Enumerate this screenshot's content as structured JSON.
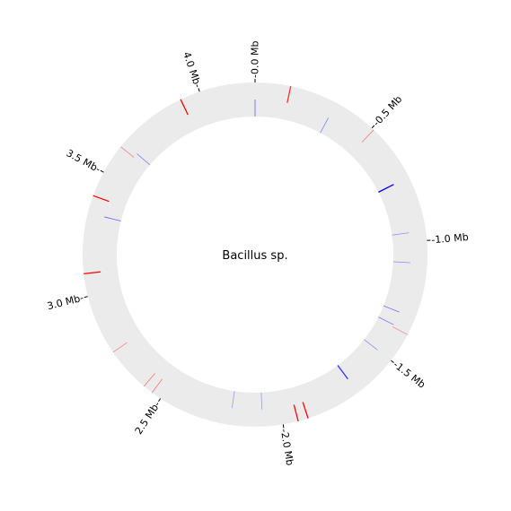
{
  "title": "Bacillus sp.",
  "genome_length_mb": 4.22,
  "colors": {
    "track": "#ebebeb",
    "forward_feature": "#ff0000",
    "reverse_feature": "#0000ff",
    "tick": "#000000"
  },
  "ticks": [
    {
      "pos": 0.0,
      "label": "0.0 Mb"
    },
    {
      "pos": 0.5,
      "label": "0.5 Mb"
    },
    {
      "pos": 1.0,
      "label": "1.0 Mb"
    },
    {
      "pos": 1.5,
      "label": "1.5 Mb"
    },
    {
      "pos": 2.0,
      "label": "2.0 Mb"
    },
    {
      "pos": 2.5,
      "label": "2.5 Mb"
    },
    {
      "pos": 3.0,
      "label": "3.0 Mb"
    },
    {
      "pos": 3.5,
      "label": "3.5 Mb"
    },
    {
      "pos": 4.0,
      "label": "4.0 Mb"
    }
  ],
  "features": [
    {
      "pos": 0.14,
      "strand": "+",
      "intensity": 0.8
    },
    {
      "pos": 0.0,
      "strand": "-",
      "intensity": 0.6
    },
    {
      "pos": 0.33,
      "strand": "-",
      "intensity": 0.45
    },
    {
      "pos": 0.51,
      "strand": "+",
      "intensity": 0.5
    },
    {
      "pos": 0.74,
      "strand": "-",
      "intensity": 1.0
    },
    {
      "pos": 0.96,
      "strand": "-",
      "intensity": 0.4
    },
    {
      "pos": 1.09,
      "strand": "-",
      "intensity": 0.4
    },
    {
      "pos": 1.31,
      "strand": "-",
      "intensity": 0.5
    },
    {
      "pos": 1.37,
      "strand": "-",
      "intensity": 0.5
    },
    {
      "pos": 1.38,
      "strand": "+",
      "intensity": 0.4
    },
    {
      "pos": 1.5,
      "strand": "-",
      "intensity": 0.4
    },
    {
      "pos": 1.68,
      "strand": "-",
      "intensity": 0.8
    },
    {
      "pos": 1.9,
      "strand": "+",
      "intensity": 1.0
    },
    {
      "pos": 1.94,
      "strand": "+",
      "intensity": 1.0
    },
    {
      "pos": 2.08,
      "strand": "-",
      "intensity": 0.35
    },
    {
      "pos": 2.21,
      "strand": "-",
      "intensity": 0.35
    },
    {
      "pos": 2.54,
      "strand": "+",
      "intensity": 0.5
    },
    {
      "pos": 2.58,
      "strand": "+",
      "intensity": 0.5
    },
    {
      "pos": 2.76,
      "strand": "+",
      "intensity": 0.4
    },
    {
      "pos": 3.09,
      "strand": "+",
      "intensity": 1.0
    },
    {
      "pos": 3.33,
      "strand": "-",
      "intensity": 0.6
    },
    {
      "pos": 3.4,
      "strand": "+",
      "intensity": 1.0
    },
    {
      "pos": 3.62,
      "strand": "+",
      "intensity": 0.45
    },
    {
      "pos": 3.64,
      "strand": "-",
      "intensity": 0.45
    },
    {
      "pos": 3.92,
      "strand": "+",
      "intensity": 1.0
    }
  ]
}
